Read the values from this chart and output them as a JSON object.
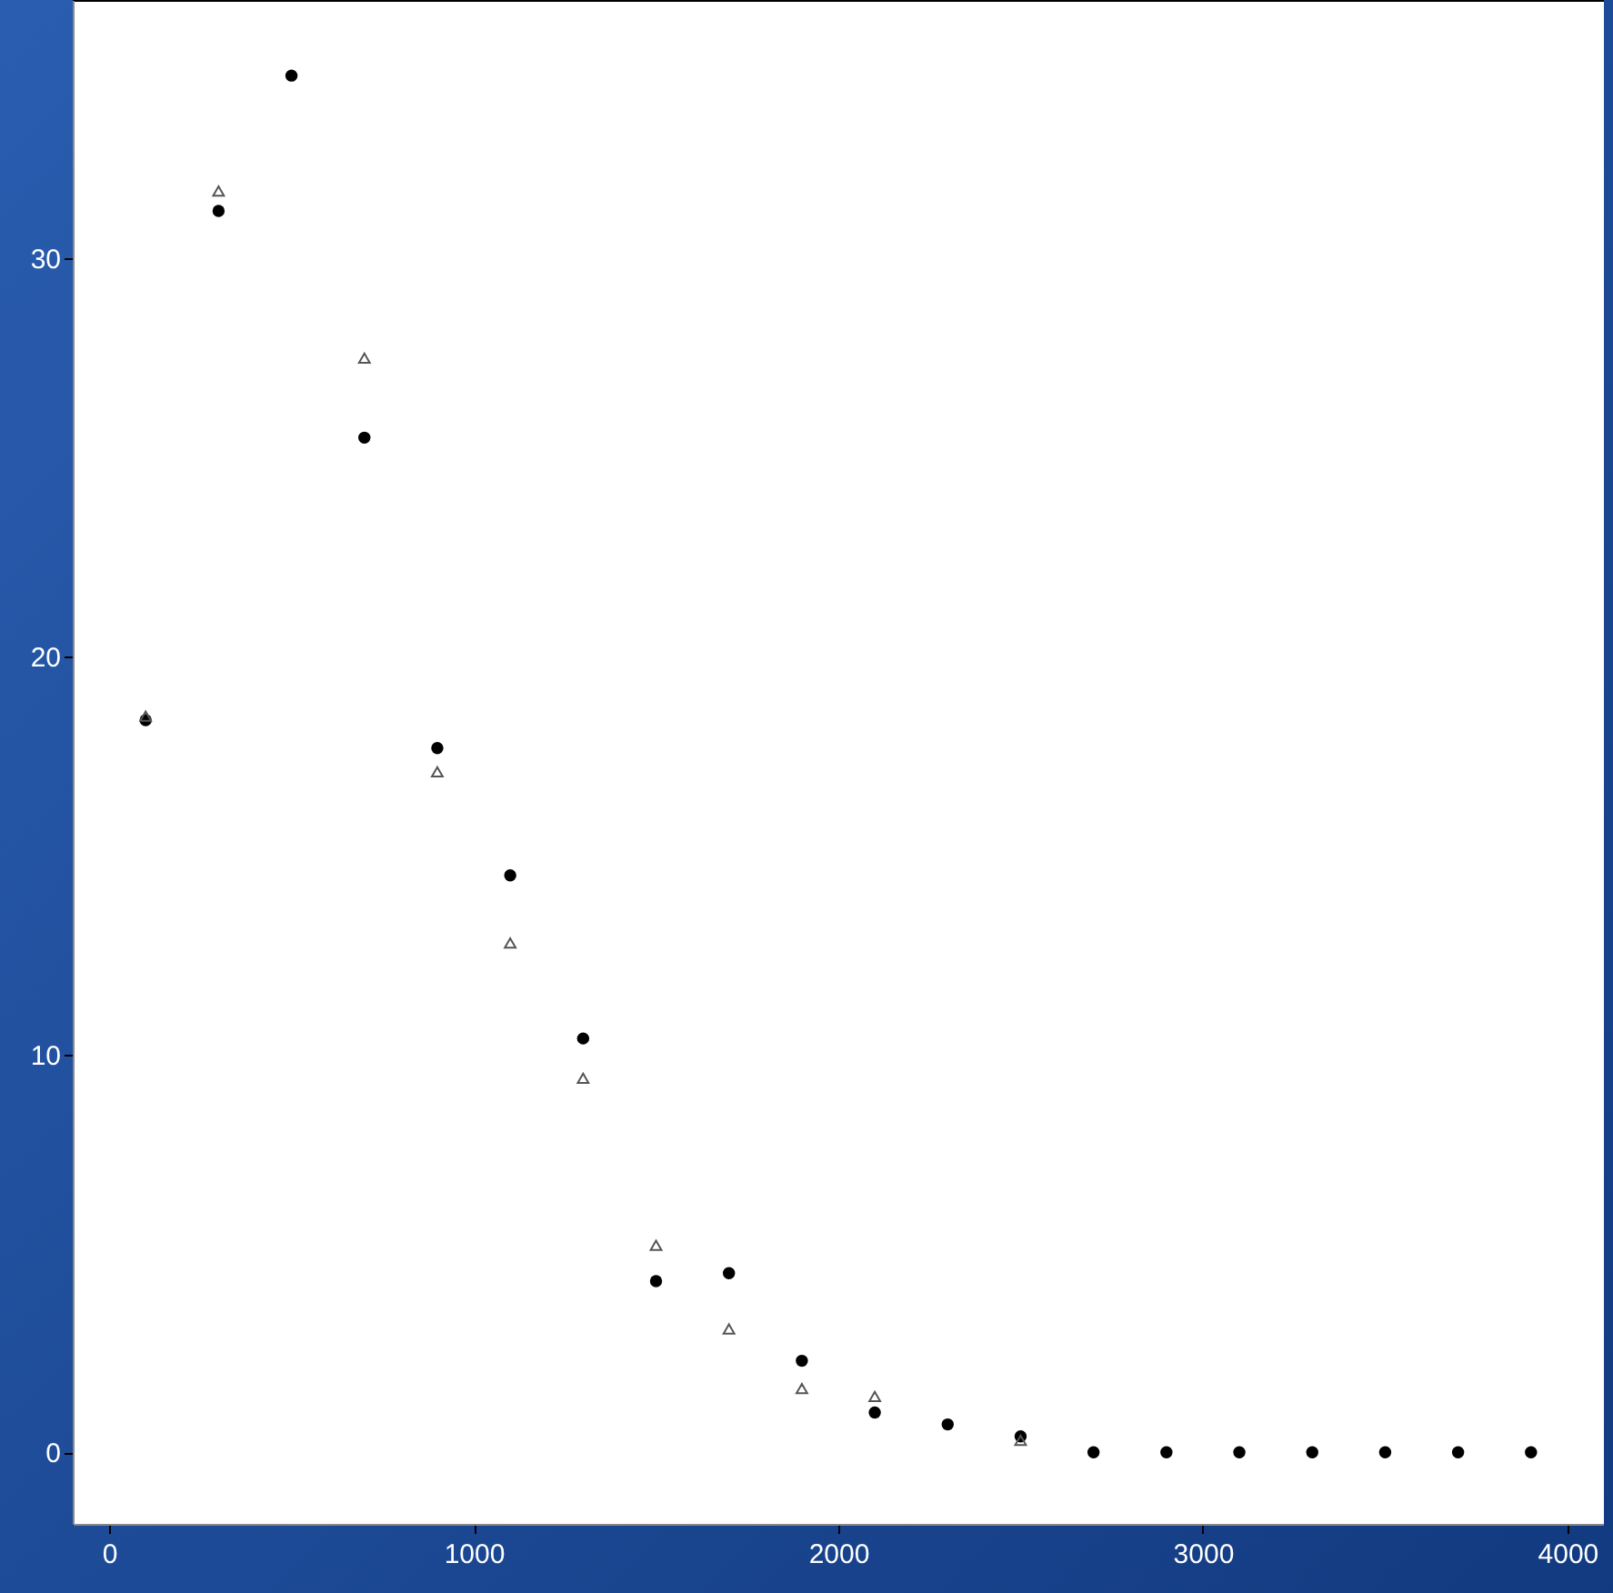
{
  "chart_data": {
    "type": "scatter",
    "xlim": [
      -100,
      4100
    ],
    "ylim": [
      -1.8,
      36.5
    ],
    "xticks": [
      0,
      1000,
      2000,
      3000,
      4000
    ],
    "yticks": [
      0,
      10,
      20,
      30
    ],
    "grid": false,
    "x": [
      100,
      300,
      500,
      700,
      900,
      1100,
      1300,
      1500,
      1700,
      1900,
      2100,
      2300,
      2500,
      2700,
      2900,
      3100,
      3300,
      3500,
      3700,
      3900
    ],
    "series": [
      {
        "color": "#000000",
        "marker": "circle",
        "values": [
          18.4,
          31.2,
          34.6,
          25.5,
          17.7,
          14.5,
          10.4,
          4.3,
          4.5,
          2.3,
          1.0,
          0.7,
          0.4,
          0,
          0,
          0,
          0,
          0,
          0,
          0
        ]
      },
      {
        "color": "#555555",
        "marker": "triangle",
        "values": [
          18.5,
          31.7,
          null,
          27.5,
          17.1,
          12.8,
          9.4,
          5.2,
          3.1,
          1.6,
          1.4,
          null,
          0.3,
          null,
          null,
          null,
          null,
          null,
          null,
          null
        ]
      }
    ]
  }
}
